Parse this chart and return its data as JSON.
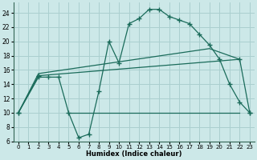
{
  "xlabel": "Humidex (Indice chaleur)",
  "background_color": "#cce8e8",
  "grid_color": "#aacfcf",
  "line_color": "#1a6b5a",
  "xlim": [
    -0.5,
    23.5
  ],
  "ylim": [
    6,
    25.5
  ],
  "xticks": [
    0,
    1,
    2,
    3,
    4,
    5,
    6,
    7,
    8,
    9,
    10,
    11,
    12,
    13,
    14,
    15,
    16,
    17,
    18,
    19,
    20,
    21,
    22,
    23
  ],
  "yticks": [
    6,
    8,
    10,
    12,
    14,
    16,
    18,
    20,
    22,
    24
  ],
  "curve1_x": [
    0,
    2,
    3,
    4,
    5,
    6,
    7,
    8,
    9,
    10,
    11,
    12,
    13,
    14,
    15,
    16,
    17,
    18,
    19,
    20,
    21,
    22,
    23
  ],
  "curve1_y": [
    10,
    15,
    15,
    15,
    10,
    6.5,
    7,
    13,
    20,
    17,
    22.5,
    23.2,
    24.5,
    24.5,
    23.5,
    23,
    22.5,
    21,
    19.5,
    17.5,
    14,
    11.5,
    10
  ],
  "line1_x": [
    0,
    2,
    22,
    23
  ],
  "line1_y": [
    10,
    15.2,
    17.5,
    10
  ],
  "line2_x": [
    0,
    2,
    19,
    22
  ],
  "line2_y": [
    10.0,
    15.5,
    19.0,
    17.5
  ],
  "line3_x": [
    5,
    22
  ],
  "line3_y": [
    10,
    10
  ]
}
